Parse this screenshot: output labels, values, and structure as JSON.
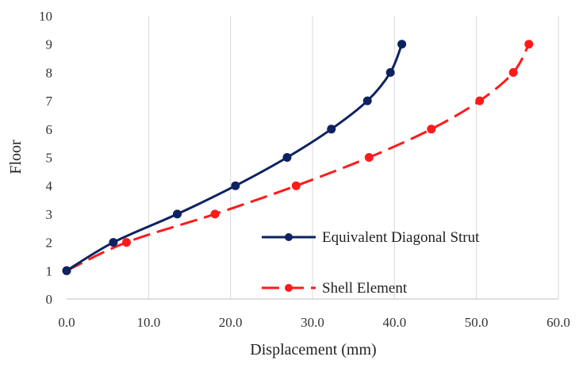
{
  "chart_data": {
    "type": "line",
    "title": "",
    "xlabel": "Displacement (mm)",
    "ylabel": "Floor",
    "xlim": [
      0,
      60
    ],
    "ylim": [
      0,
      10
    ],
    "xticks": [
      0,
      10,
      20,
      30,
      40,
      50,
      60
    ],
    "yticks": [
      0,
      1,
      2,
      3,
      4,
      5,
      6,
      7,
      8,
      9,
      10
    ],
    "xtick_labels": [
      "0.0",
      "10.0",
      "20.0",
      "30.0",
      "40.0",
      "50.0",
      "60.0"
    ],
    "ytick_labels": [
      "0",
      "1",
      "2",
      "3",
      "4",
      "5",
      "6",
      "7",
      "8",
      "9",
      "10"
    ],
    "grid": "vertical",
    "legend_position": "lower-right",
    "series": [
      {
        "name": "Equivalent Diagonal Strut",
        "color": "#0d2260",
        "style": "solid",
        "x": [
          0.0,
          5.7,
          13.5,
          20.6,
          26.9,
          32.3,
          36.7,
          39.5,
          40.9
        ],
        "y": [
          1,
          2,
          3,
          4,
          5,
          6,
          7,
          8,
          9
        ]
      },
      {
        "name": "Shell Element",
        "color": "#ff1a1a",
        "style": "dashed",
        "x": [
          0.0,
          7.3,
          18.1,
          28.0,
          36.9,
          44.5,
          50.4,
          54.5,
          56.4
        ],
        "y": [
          1,
          2,
          3,
          4,
          5,
          6,
          7,
          8,
          9
        ]
      }
    ]
  }
}
